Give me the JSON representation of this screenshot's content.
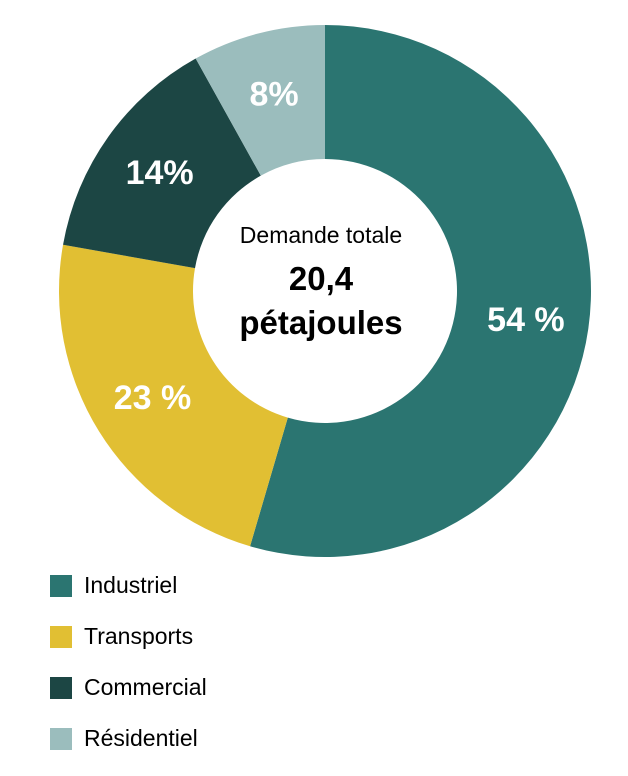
{
  "chart_data": {
    "type": "pie",
    "subtype": "donut",
    "categories": [
      "Industriel",
      "Transports",
      "Commercial",
      "Résidentiel"
    ],
    "values": [
      54,
      23,
      14,
      8
    ],
    "value_labels": [
      "54 %",
      "23 %",
      "14%",
      "8%"
    ],
    "unit": "%",
    "colors": [
      "#2b7571",
      "#e1bf33",
      "#1c4644",
      "#9bbdbd"
    ],
    "center_caption": "Demande totale",
    "center_value_line1": "20,4",
    "center_value_line2": "pétajoules",
    "legend_position": "bottom-left"
  },
  "legend": {
    "items": [
      {
        "label": "Industriel",
        "color": "#2b7571"
      },
      {
        "label": "Transports",
        "color": "#e1bf33"
      },
      {
        "label": "Commercial",
        "color": "#1c4644"
      },
      {
        "label": "Résidentiel",
        "color": "#9bbdbd"
      }
    ]
  }
}
